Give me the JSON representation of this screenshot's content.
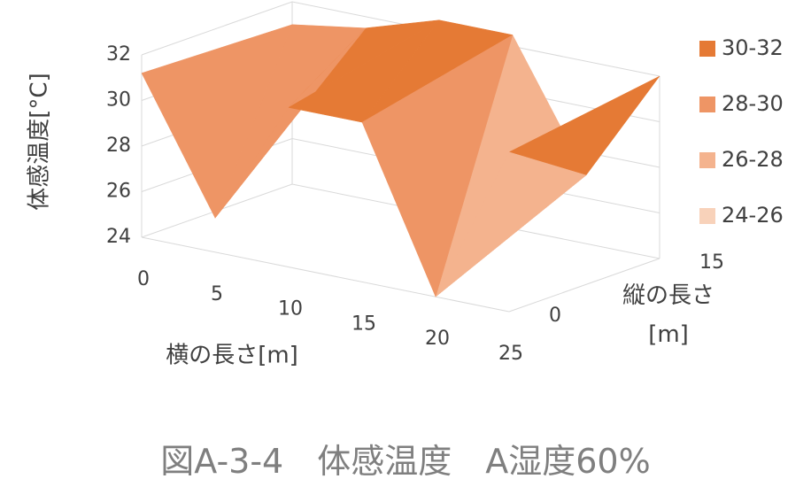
{
  "chart_data": {
    "type": "surface",
    "caption": "図A-3-4　体感温度　A湿度60%",
    "z_axis_label": "体感温度[°C]",
    "x_axis_label": "横の長さ[m]",
    "depth_axis_label": "縦の長さ [m]",
    "x": [
      0,
      5,
      10,
      15,
      20,
      25
    ],
    "depth": [
      0,
      15
    ],
    "z": [
      [
        31.2,
        25.5,
        31,
        31,
        24,
        31
      ],
      [
        31,
        31.5,
        32.5,
        32.5,
        27,
        32
      ]
    ],
    "zlim": [
      24,
      32
    ],
    "zticks": [
      24,
      26,
      28,
      30,
      32
    ],
    "bands": [
      {
        "name": "30-32",
        "color": "#e57a35",
        "range": [
          30,
          32
        ]
      },
      {
        "name": "28-30",
        "color": "#ee9565",
        "range": [
          28,
          30
        ]
      },
      {
        "name": "26-28",
        "color": "#f4b38e",
        "range": [
          26,
          28
        ]
      },
      {
        "name": "24-26",
        "color": "#f8d2ba",
        "range": [
          24,
          26
        ]
      }
    ],
    "grid": true
  }
}
